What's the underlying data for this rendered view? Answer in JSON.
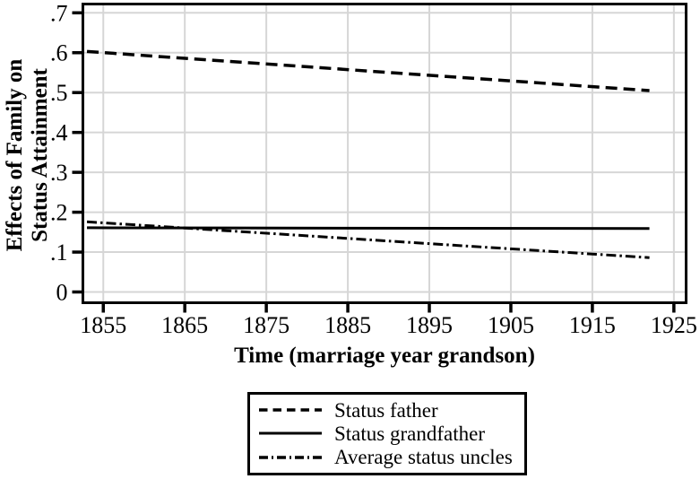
{
  "figure": {
    "background_color": "#ffffff",
    "line_color": "#000000",
    "gridline_color": "#d6d6d6"
  },
  "chart_data": {
    "type": "line",
    "title": "",
    "xlabel": "Time (marriage year grandson)",
    "ylabel": "Effects of Family on Status Attainment",
    "ylabel_lines": [
      "Effects of Family on",
      "Status Attainment"
    ],
    "xlim": [
      1852.5,
      1926.5
    ],
    "ylim": [
      -0.027,
      0.722
    ],
    "x_ticks": [
      1855,
      1865,
      1875,
      1885,
      1895,
      1905,
      1915,
      1925
    ],
    "x_tick_labels": [
      "1855",
      "1865",
      "1875",
      "1885",
      "1895",
      "1905",
      "1915",
      "1925"
    ],
    "y_ticks": [
      0,
      0.1,
      0.2,
      0.3,
      0.4,
      0.5,
      0.6,
      0.7
    ],
    "y_tick_labels": [
      "0",
      ".1",
      ".2",
      ".3",
      ".4",
      ".5",
      ".6",
      ".7"
    ],
    "grid": true,
    "legend_position": "bottom-center",
    "series": [
      {
        "name": "Status father",
        "style": "dashed",
        "x": [
          1853,
          1922
        ],
        "values": [
          0.603,
          0.505
        ]
      },
      {
        "name": "Status grandfather",
        "style": "solid",
        "x": [
          1853,
          1922
        ],
        "values": [
          0.161,
          0.159
        ]
      },
      {
        "name": "Average status uncles",
        "style": "dashdot",
        "x": [
          1853,
          1922
        ],
        "values": [
          0.176,
          0.086
        ]
      }
    ]
  }
}
